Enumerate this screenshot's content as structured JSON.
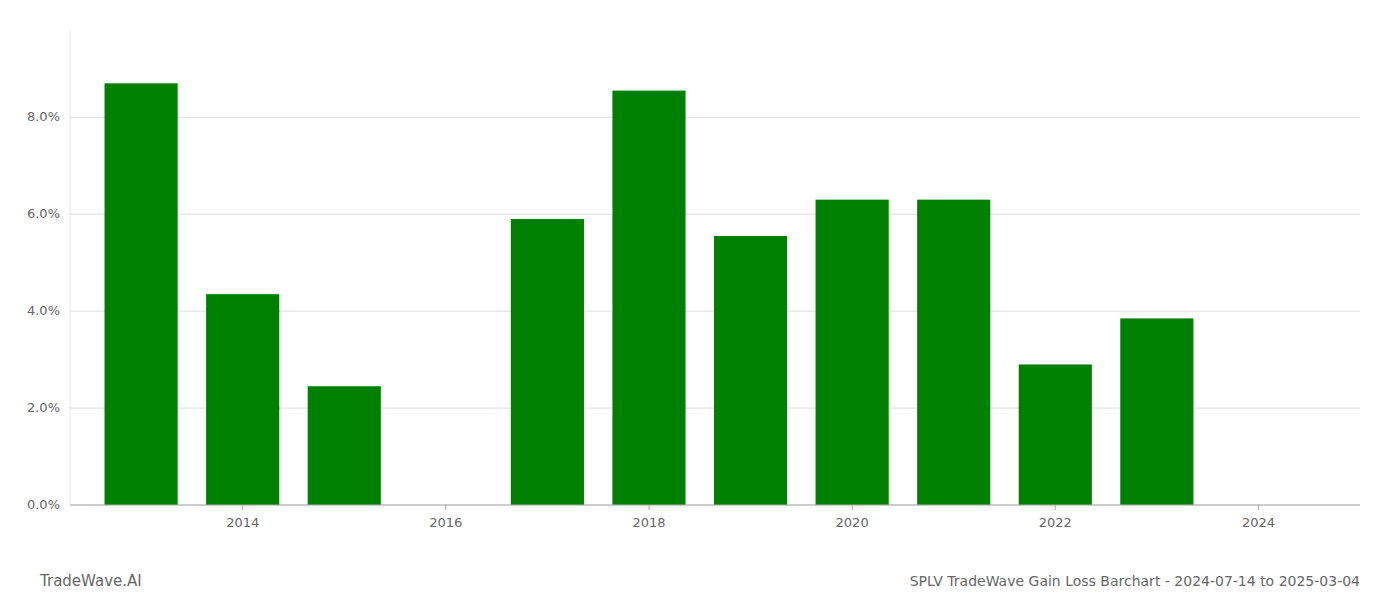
{
  "chart_data": {
    "type": "bar",
    "title": "SPLV TradeWave Gain Loss Barchart - 2024-07-14 to 2025-03-04",
    "annotations": [
      "TradeWave.AI"
    ],
    "x": [
      2013,
      2014,
      2015,
      2017,
      2018,
      2019,
      2020,
      2021,
      2022,
      2023
    ],
    "values": [
      8.7,
      4.35,
      2.45,
      5.9,
      8.55,
      5.55,
      6.3,
      6.3,
      2.9,
      3.85
    ],
    "color": "#008000",
    "xlim": [
      2012.3,
      2025.0
    ],
    "xticks": [
      2014,
      2016,
      2018,
      2020,
      2022,
      2024
    ],
    "ylim": [
      0,
      9.8
    ],
    "yticks": [
      {
        "value": 0.0,
        "label": "0.0%"
      },
      {
        "value": 2.0,
        "label": "2.0%"
      },
      {
        "value": 4.0,
        "label": "4.0%"
      },
      {
        "value": 6.0,
        "label": "6.0%"
      },
      {
        "value": 8.0,
        "label": "8.0%"
      }
    ],
    "grid": true
  }
}
